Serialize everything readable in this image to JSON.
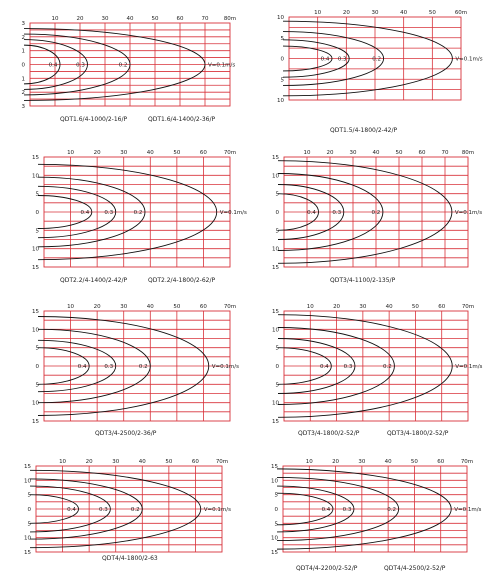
{
  "chart_data": [
    {
      "type": "line",
      "xticks": [
        "10",
        "20",
        "30",
        "40",
        "50",
        "60",
        "70",
        "80m"
      ],
      "yticks": [
        "3",
        "2",
        "1",
        "0",
        "1",
        "2",
        "3"
      ],
      "xlim": [
        0,
        80
      ],
      "ylim": [
        -3,
        3
      ],
      "series": [
        {
          "label": "0.4",
          "x": [
            0,
            12,
            0
          ],
          "y": [
            1.4,
            0,
            -1.4
          ]
        },
        {
          "label": "0.3",
          "x": [
            0,
            23,
            0
          ],
          "y": [
            1.8,
            0,
            -1.8
          ]
        },
        {
          "label": "0.2",
          "x": [
            0,
            40,
            0
          ],
          "y": [
            2.2,
            0,
            -2.2
          ]
        },
        {
          "label": "V=0.1m/s",
          "x": [
            0,
            70,
            0
          ],
          "y": [
            2.6,
            0,
            -2.6
          ]
        }
      ],
      "captions": [
        "QDT1.6/4-1000/2-16/P",
        "QDT1.6/4-1400/2-36/P"
      ]
    },
    {
      "type": "line",
      "xticks": [
        "10",
        "20",
        "30",
        "40",
        "50",
        "60m"
      ],
      "yticks": [
        "10",
        "5",
        "0",
        "5",
        "10"
      ],
      "xlim": [
        0,
        60
      ],
      "ylim": [
        -10,
        10
      ],
      "series": [
        {
          "label": "0.4",
          "x": [
            0,
            15,
            0
          ],
          "y": [
            3,
            0,
            -3
          ]
        },
        {
          "label": "0.3",
          "x": [
            0,
            21,
            0
          ],
          "y": [
            4.5,
            0,
            -4.5
          ]
        },
        {
          "label": "0.2",
          "x": [
            0,
            33,
            0
          ],
          "y": [
            6.5,
            0,
            -6.5
          ]
        },
        {
          "label": "V=0.1m/s",
          "x": [
            0,
            57,
            0
          ],
          "y": [
            9,
            0,
            -9
          ]
        }
      ],
      "captions": [
        "QDT1.5/4-1800/2-42/P"
      ]
    },
    {
      "type": "line",
      "xticks": [
        "10",
        "20",
        "30",
        "40",
        "50",
        "60",
        "70m"
      ],
      "yticks": [
        "15",
        "10",
        "5",
        "0",
        "5",
        "10",
        "15"
      ],
      "xlim": [
        0,
        70
      ],
      "ylim": [
        -15,
        15
      ],
      "series": [
        {
          "label": "0.4",
          "x": [
            0,
            18,
            0
          ],
          "y": [
            4.5,
            0,
            -4.5
          ]
        },
        {
          "label": "0.3",
          "x": [
            0,
            27,
            0
          ],
          "y": [
            7,
            0,
            -7
          ]
        },
        {
          "label": "0.2",
          "x": [
            0,
            38,
            0
          ],
          "y": [
            9.5,
            0,
            -9.5
          ]
        },
        {
          "label": "V=0.1m/s",
          "x": [
            0,
            65,
            0
          ],
          "y": [
            13,
            0,
            -13
          ]
        }
      ],
      "captions": [
        "QDT2.2/4-1400/2-42/P",
        "QDT2.2/4-1800/2-62/P"
      ]
    },
    {
      "type": "line",
      "xticks": [
        "10",
        "20",
        "30",
        "40",
        "50",
        "60",
        "70",
        "80m"
      ],
      "yticks": [
        "15",
        "10",
        "5",
        "0",
        "5",
        "10",
        "15"
      ],
      "xlim": [
        0,
        80
      ],
      "ylim": [
        -15,
        15
      ],
      "series": [
        {
          "label": "0.4",
          "x": [
            0,
            15,
            0
          ],
          "y": [
            5,
            0,
            -5
          ]
        },
        {
          "label": "0.3",
          "x": [
            0,
            26,
            0
          ],
          "y": [
            7.5,
            0,
            -7.5
          ]
        },
        {
          "label": "0.2",
          "x": [
            0,
            43,
            0
          ],
          "y": [
            10.5,
            0,
            -10.5
          ]
        },
        {
          "label": "V=0.1m/s",
          "x": [
            0,
            73,
            0
          ],
          "y": [
            14,
            0,
            -14
          ]
        }
      ],
      "captions": [
        "QDT3/4-1100/2-135/P"
      ]
    },
    {
      "type": "line",
      "xticks": [
        "10",
        "20",
        "30",
        "40",
        "50",
        "60",
        "70m"
      ],
      "yticks": [
        "15",
        "10",
        "5",
        "0",
        "5",
        "10",
        "15"
      ],
      "xlim": [
        0,
        70
      ],
      "ylim": [
        -15,
        15
      ],
      "series": [
        {
          "label": "0.4",
          "x": [
            0,
            17,
            0
          ],
          "y": [
            5,
            0,
            -5
          ]
        },
        {
          "label": "0.3",
          "x": [
            0,
            27,
            0
          ],
          "y": [
            7,
            0,
            -7
          ]
        },
        {
          "label": "0.2",
          "x": [
            0,
            40,
            0
          ],
          "y": [
            10,
            0,
            -10
          ]
        },
        {
          "label": "V=0.1m/s",
          "x": [
            0,
            62,
            0
          ],
          "y": [
            13.5,
            0,
            -13.5
          ]
        }
      ],
      "captions": [
        "QDT3/4-2500/2-36/P"
      ]
    },
    {
      "type": "line",
      "xticks": [
        "10",
        "20",
        "30",
        "40",
        "50",
        "60",
        "70m"
      ],
      "yticks": [
        "15",
        "10",
        "5",
        "0",
        "5",
        "10",
        "15"
      ],
      "xlim": [
        0,
        70
      ],
      "ylim": [
        -15,
        15
      ],
      "series": [
        {
          "label": "0.4",
          "x": [
            0,
            18,
            0
          ],
          "y": [
            5,
            0,
            -5
          ]
        },
        {
          "label": "0.3",
          "x": [
            0,
            27,
            0
          ],
          "y": [
            7.5,
            0,
            -7.5
          ]
        },
        {
          "label": "0.2",
          "x": [
            0,
            42,
            0
          ],
          "y": [
            10.5,
            0,
            -10.5
          ]
        },
        {
          "label": "V=0.1m/s",
          "x": [
            0,
            64,
            0
          ],
          "y": [
            14,
            0,
            -14
          ]
        }
      ],
      "captions": [
        "QDT3/4-1800/2-52/P",
        "QDT3/4-1800/2-52/P"
      ]
    },
    {
      "type": "line",
      "xticks": [
        "10",
        "20",
        "30",
        "40",
        "50",
        "60",
        "70m"
      ],
      "yticks": [
        "15",
        "10",
        "5",
        "0",
        "5",
        "10",
        "15"
      ],
      "xlim": [
        0,
        70
      ],
      "ylim": [
        -15,
        15
      ],
      "series": [
        {
          "label": "0.4",
          "x": [
            0,
            16,
            0
          ],
          "y": [
            5,
            0,
            -5
          ]
        },
        {
          "label": "0.3",
          "x": [
            0,
            28,
            0
          ],
          "y": [
            8,
            0,
            -8
          ]
        },
        {
          "label": "0.2",
          "x": [
            0,
            40,
            0
          ],
          "y": [
            10.5,
            0,
            -10.5
          ]
        },
        {
          "label": "V=0.1m/s",
          "x": [
            0,
            62,
            0
          ],
          "y": [
            13.5,
            0,
            -13.5
          ]
        }
      ],
      "captions": [
        "QDT4/4-1800/2-63"
      ]
    },
    {
      "type": "line",
      "xticks": [
        "10",
        "20",
        "30",
        "40",
        "50",
        "60",
        "70m"
      ],
      "yticks": [
        "15",
        "10",
        "5",
        "0",
        "5",
        "10",
        "15"
      ],
      "xlim": [
        0,
        70
      ],
      "ylim": [
        -15,
        15
      ],
      "series": [
        {
          "label": "0.4",
          "x": [
            0,
            19,
            0
          ],
          "y": [
            5.5,
            0,
            -5.5
          ]
        },
        {
          "label": "0.3",
          "x": [
            0,
            27,
            0
          ],
          "y": [
            8,
            0,
            -8
          ]
        },
        {
          "label": "0.2",
          "x": [
            0,
            44,
            0
          ],
          "y": [
            11,
            0,
            -11
          ]
        },
        {
          "label": "V=0.1m/s",
          "x": [
            0,
            64,
            0
          ],
          "y": [
            14,
            0,
            -14
          ]
        }
      ],
      "captions": [
        "QDT4/4-2200/2-52/P",
        "QDT4/4-2500/2-52/P"
      ]
    }
  ]
}
